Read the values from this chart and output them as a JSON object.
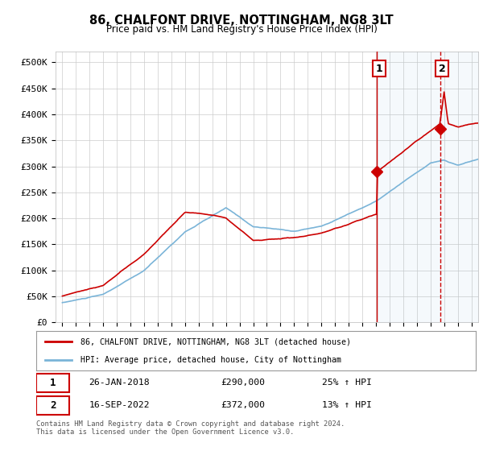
{
  "title": "86, CHALFONT DRIVE, NOTTINGHAM, NG8 3LT",
  "subtitle": "Price paid vs. HM Land Registry's House Price Index (HPI)",
  "ylabel_ticks": [
    "£0",
    "£50K",
    "£100K",
    "£150K",
    "£200K",
    "£250K",
    "£300K",
    "£350K",
    "£400K",
    "£450K",
    "£500K"
  ],
  "ytick_values": [
    0,
    50000,
    100000,
    150000,
    200000,
    250000,
    300000,
    350000,
    400000,
    450000,
    500000
  ],
  "xlim_years": [
    1994.5,
    2025.5
  ],
  "ylim": [
    0,
    520000
  ],
  "red_color": "#cc0000",
  "blue_color": "#7ab4d8",
  "purchase1_x": 2018.07,
  "purchase1_y": 290000,
  "purchase2_x": 2022.71,
  "purchase2_y": 372000,
  "legend_label_red": "86, CHALFONT DRIVE, NOTTINGHAM, NG8 3LT (detached house)",
  "legend_label_blue": "HPI: Average price, detached house, City of Nottingham",
  "table_row1": [
    "1",
    "26-JAN-2018",
    "£290,000",
    "25% ↑ HPI"
  ],
  "table_row2": [
    "2",
    "16-SEP-2022",
    "£372,000",
    "13% ↑ HPI"
  ],
  "footer": "Contains HM Land Registry data © Crown copyright and database right 2024.\nThis data is licensed under the Open Government Licence v3.0."
}
